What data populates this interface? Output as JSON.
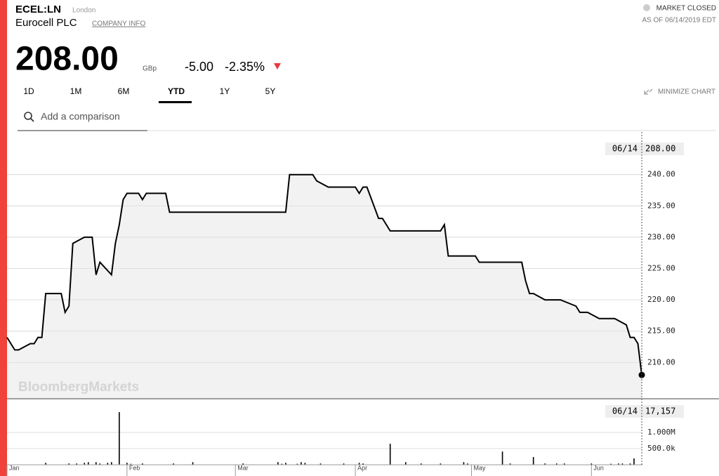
{
  "header": {
    "ticker": "ECEL:LN",
    "exchange": "London",
    "company": "Eurocell PLC",
    "company_info": "COMPANY INFO",
    "status": "MARKET CLOSED",
    "as_of": "AS OF 06/14/2019 EDT",
    "price": "208.00",
    "currency": "GBp",
    "change": "-5.00",
    "change_pct": "-2.35%"
  },
  "ranges": [
    "1D",
    "1M",
    "6M",
    "YTD",
    "1Y",
    "5Y"
  ],
  "active_range": "YTD",
  "minimize": "MINIMIZE CHART",
  "search_placeholder": "Add a comparison",
  "chart_data": [
    {
      "type": "line",
      "color": "#000000",
      "watermark": "BloombergMarkets",
      "last_label": "06/14",
      "last_value_label": "208.00",
      "x": [
        1,
        3,
        4,
        7,
        8,
        9,
        10,
        11,
        15,
        16,
        17,
        18,
        21,
        23,
        24,
        25,
        28,
        29,
        30,
        31,
        32,
        35,
        36,
        37,
        42,
        43,
        73,
        74,
        80,
        81,
        84,
        91,
        92,
        93,
        94,
        97,
        98,
        100,
        113,
        114,
        115,
        122,
        123,
        134,
        135,
        136,
        137,
        140,
        144,
        148,
        149,
        151,
        154,
        158,
        161,
        162,
        163,
        164,
        165
      ],
      "values": [
        214,
        212,
        212,
        213,
        213,
        214,
        214,
        221,
        221,
        218,
        219,
        229,
        230,
        230,
        224,
        226,
        224,
        229,
        232,
        236,
        237,
        237,
        236,
        237,
        237,
        234,
        234,
        240,
        240,
        239,
        238,
        238,
        237,
        238,
        238,
        233,
        233,
        231,
        231,
        232,
        227,
        227,
        226,
        226,
        223,
        221,
        221,
        220,
        220,
        219,
        218,
        218,
        217,
        217,
        216,
        214,
        214,
        213,
        208
      ],
      "xlim": [
        1,
        165
      ],
      "ylim": [
        204.2,
        246.8
      ],
      "xticks": [
        {
          "value": 1,
          "label": "Jan"
        },
        {
          "value": 32,
          "label": "Feb"
        },
        {
          "value": 60,
          "label": "Mar"
        },
        {
          "value": 91,
          "label": "Apr"
        },
        {
          "value": 121,
          "label": "May"
        },
        {
          "value": 152,
          "label": "Jun"
        }
      ],
      "yticks": [
        {
          "value": 210,
          "label": "210.00"
        },
        {
          "value": 215,
          "label": "215.00"
        },
        {
          "value": 220,
          "label": "220.00"
        },
        {
          "value": 225,
          "label": "225.00"
        },
        {
          "value": 230,
          "label": "230.00"
        },
        {
          "value": 235,
          "label": "235.00"
        },
        {
          "value": 240,
          "label": "240.00"
        }
      ],
      "grid": true
    },
    {
      "type": "bar",
      "color": "#000000",
      "last_label": "06/14",
      "last_value_label": "17,157",
      "x": [
        11,
        17,
        19,
        21,
        22,
        24,
        25,
        27,
        28,
        30,
        32,
        33,
        36,
        44,
        49,
        62,
        71,
        72,
        73,
        76,
        77,
        78,
        82,
        88,
        92,
        93,
        100,
        104,
        108,
        113,
        119,
        120,
        129,
        131,
        137,
        140,
        143,
        145,
        152,
        157,
        159,
        160,
        162,
        163,
        165
      ],
      "values": [
        60000,
        40000,
        40000,
        60000,
        80000,
        80000,
        40000,
        60000,
        80000,
        1630000,
        60000,
        30000,
        40000,
        40000,
        80000,
        40000,
        80000,
        30000,
        60000,
        30000,
        80000,
        60000,
        40000,
        40000,
        60000,
        40000,
        650000,
        80000,
        40000,
        40000,
        80000,
        40000,
        410000,
        40000,
        240000,
        40000,
        40000,
        40000,
        40000,
        30000,
        40000,
        40000,
        40000,
        196000,
        17157
      ],
      "xlim": [
        1,
        165
      ],
      "ylim": [
        0,
        2000000
      ],
      "yticks": [
        {
          "value": 500000,
          "label": "500.0k"
        },
        {
          "value": 1000000,
          "label": "1.000M"
        }
      ],
      "grid": true
    }
  ]
}
